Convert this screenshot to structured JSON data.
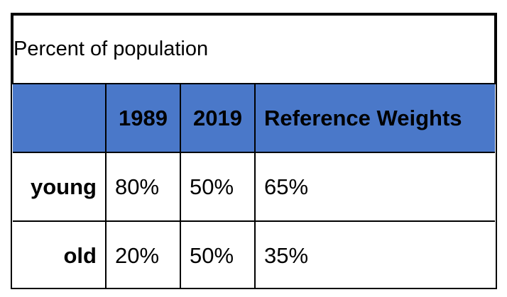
{
  "table": {
    "title": "Percent of population",
    "header": {
      "corner": "",
      "columns": [
        "1989",
        "2019",
        "Reference Weights"
      ]
    },
    "rows": [
      {
        "label": "young",
        "values": [
          "80%",
          "50%",
          "65%"
        ]
      },
      {
        "label": "old",
        "values": [
          "20%",
          "50%",
          "35%"
        ]
      }
    ],
    "colors": {
      "header_bg": "#4a78c9",
      "header_text": "#ffffff",
      "border": "#000000",
      "text": "#000000"
    }
  }
}
